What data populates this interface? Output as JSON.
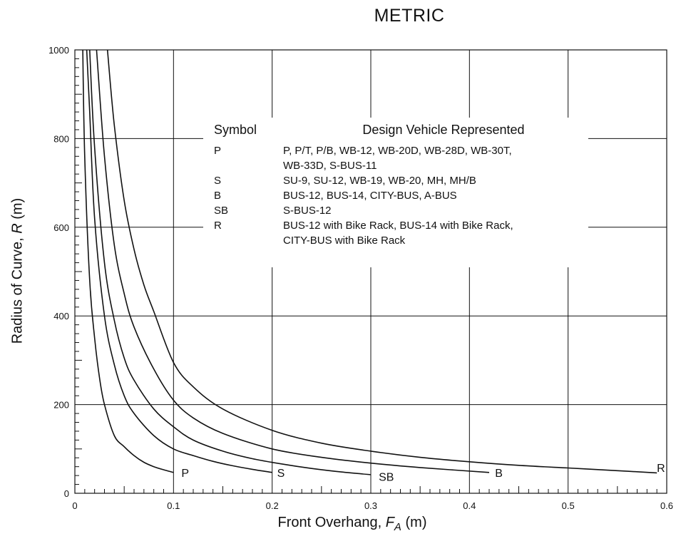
{
  "chart_data": {
    "type": "line",
    "title": "METRIC",
    "xlabel": {
      "prefix": "Front Overhang, ",
      "var": "F",
      "sub": "A",
      "suffix": " (m)"
    },
    "ylabel": {
      "prefix": "Radius of Curve, ",
      "var": "R",
      "suffix": " (m)"
    },
    "xlim": [
      0,
      0.6
    ],
    "ylim": [
      0,
      1000
    ],
    "xticks": [
      "0",
      "0.1",
      "0.2",
      "0.3",
      "0.4",
      "0.5",
      "0.6"
    ],
    "yticks": [
      "0",
      "200",
      "400",
      "600",
      "800",
      "1000"
    ],
    "grid": true,
    "series": [
      {
        "name": "P",
        "x": [
          0.008,
          0.01,
          0.015,
          0.02,
          0.025,
          0.03,
          0.04,
          0.05,
          0.06,
          0.07,
          0.08,
          0.09,
          0.1
        ],
        "y": [
          1000,
          760,
          480,
          350,
          260,
          200,
          130,
          105,
          85,
          70,
          60,
          53,
          47
        ]
      },
      {
        "name": "S",
        "x": [
          0.012,
          0.015,
          0.02,
          0.03,
          0.04,
          0.05,
          0.06,
          0.08,
          0.1,
          0.12,
          0.14,
          0.16,
          0.18,
          0.2
        ],
        "y": [
          1000,
          860,
          620,
          400,
          290,
          220,
          180,
          130,
          100,
          85,
          72,
          62,
          54,
          47
        ]
      },
      {
        "name": "SB",
        "x": [
          0.015,
          0.02,
          0.03,
          0.04,
          0.05,
          0.06,
          0.08,
          0.1,
          0.12,
          0.15,
          0.18,
          0.21,
          0.24,
          0.27,
          0.3
        ],
        "y": [
          1000,
          780,
          520,
          390,
          305,
          255,
          190,
          150,
          120,
          95,
          78,
          66,
          56,
          48,
          42
        ]
      },
      {
        "name": "B",
        "x": [
          0.022,
          0.03,
          0.04,
          0.05,
          0.06,
          0.08,
          0.1,
          0.12,
          0.15,
          0.2,
          0.25,
          0.3,
          0.35,
          0.42
        ],
        "y": [
          1000,
          760,
          560,
          450,
          375,
          280,
          210,
          170,
          135,
          100,
          81,
          68,
          58,
          47
        ]
      },
      {
        "name": "R",
        "x": [
          0.033,
          0.04,
          0.05,
          0.06,
          0.07,
          0.08,
          0.1,
          0.12,
          0.15,
          0.2,
          0.25,
          0.3,
          0.35,
          0.4,
          0.45,
          0.5,
          0.55,
          0.59
        ],
        "y": [
          1000,
          830,
          660,
          550,
          470,
          410,
          295,
          240,
          190,
          142,
          113,
          95,
          81,
          71,
          63,
          57,
          51,
          46
        ]
      }
    ],
    "curve_labels": [
      {
        "text": "P",
        "x": 0.108,
        "y": 47
      },
      {
        "text": "S",
        "x": 0.205,
        "y": 47
      },
      {
        "text": "SB",
        "x": 0.308,
        "y": 38
      },
      {
        "text": "B",
        "x": 0.426,
        "y": 47
      },
      {
        "text": "R",
        "x": 0.59,
        "y": 58
      }
    ],
    "legend": {
      "header_symbol": "Symbol",
      "header_desc": "Design Vehicle Represented",
      "rows": [
        {
          "symbol": "P",
          "lines": [
            "P, P/T, P/B, WB-12, WB-20D, WB-28D, WB-30T,",
            "WB-33D, S-BUS-11"
          ]
        },
        {
          "symbol": "S",
          "lines": [
            "SU-9, SU-12, WB-19, WB-20, MH, MH/B"
          ]
        },
        {
          "symbol": "B",
          "lines": [
            "BUS-12, BUS-14, CITY-BUS, A-BUS"
          ]
        },
        {
          "symbol": "SB",
          "lines": [
            "S-BUS-12"
          ]
        },
        {
          "symbol": "R",
          "lines": [
            "BUS-12 with Bike Rack, BUS-14 with Bike Rack,",
            "CITY-BUS with Bike Rack"
          ]
        }
      ]
    }
  }
}
